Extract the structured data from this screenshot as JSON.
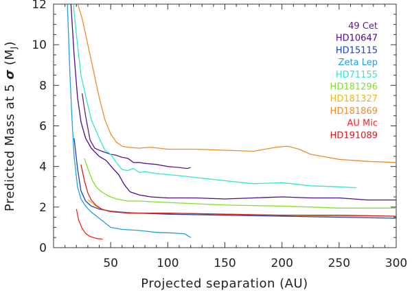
{
  "chart_data": {
    "type": "line",
    "title": "",
    "xlabel": "Projected separation (AU)",
    "ylabel_main": "Predicted Mass at 5 ",
    "ylabel_sigma": "σ",
    "ylabel_unit": " (M",
    "ylabel_sub": "J",
    "ylabel_close": ")",
    "xlim": [
      0,
      300
    ],
    "ylim": [
      0,
      12
    ],
    "xticks": [
      50,
      100,
      150,
      200,
      250,
      300
    ],
    "yticks": [
      0,
      2,
      4,
      6,
      8,
      10,
      12
    ],
    "legend_position": "top-right",
    "series": [
      {
        "name": "49 Cet",
        "color": "#5a1a8c",
        "x": [
          25,
          28,
          32,
          36,
          40,
          45,
          50,
          55,
          60,
          65,
          70,
          75,
          80,
          90,
          100,
          110,
          117,
          120
        ],
        "y": [
          7.6,
          6.5,
          5.3,
          4.9,
          4.8,
          4.7,
          4.6,
          4.55,
          4.45,
          4.4,
          4.2,
          4.2,
          4.15,
          4.1,
          4.0,
          3.95,
          3.9,
          3.95
        ]
      },
      {
        "name": "HD10647",
        "color": "#4b0a8a",
        "x": [
          15,
          18,
          21,
          24,
          28,
          33,
          40,
          46,
          52,
          57,
          62,
          67,
          75,
          85,
          100,
          125,
          150,
          175,
          200,
          225,
          250,
          275,
          300
        ],
        "y": [
          12.2,
          9.5,
          7.4,
          6.2,
          5.4,
          4.9,
          4.5,
          4.3,
          3.9,
          3.6,
          3.1,
          2.75,
          2.6,
          2.5,
          2.45,
          2.45,
          2.4,
          2.45,
          2.5,
          2.45,
          2.45,
          2.35,
          2.35
        ]
      },
      {
        "name": "HD15115",
        "color": "#1f3fbf",
        "x": [
          18,
          21,
          24,
          28,
          33,
          40,
          50,
          60,
          75,
          100,
          150,
          200,
          250,
          300
        ],
        "y": [
          5.4,
          3.9,
          2.8,
          2.3,
          2.05,
          1.9,
          1.8,
          1.75,
          1.7,
          1.65,
          1.6,
          1.55,
          1.5,
          1.45
        ]
      },
      {
        "name": "Zeta Lep",
        "color": "#1e9ee6",
        "x": [
          12,
          14,
          16,
          18,
          21,
          24,
          28,
          33,
          40,
          50,
          60,
          75,
          90,
          105,
          115,
          120
        ],
        "y": [
          12.2,
          9.0,
          6.5,
          4.5,
          3.0,
          2.4,
          2.05,
          1.75,
          1.45,
          1.0,
          0.9,
          0.85,
          0.75,
          0.72,
          0.68,
          0.5
        ]
      },
      {
        "name": "HD71155",
        "color": "#2ee8c8",
        "x": [
          17,
          20,
          24,
          28,
          33,
          40,
          45,
          50,
          55,
          60,
          65,
          70,
          75,
          80,
          90,
          100,
          110,
          125,
          150,
          175,
          200,
          225,
          250,
          265
        ],
        "y": [
          12.2,
          10.5,
          8.5,
          7.5,
          6.3,
          5.4,
          4.8,
          4.6,
          4.2,
          3.85,
          3.8,
          3.9,
          3.7,
          3.75,
          3.65,
          3.6,
          3.55,
          3.45,
          3.3,
          3.15,
          3.2,
          3.05,
          3.0,
          2.95
        ]
      },
      {
        "name": "HD181296",
        "color": "#7fe02a",
        "x": [
          27,
          30,
          34,
          38,
          42,
          48,
          55,
          65,
          75,
          90,
          110,
          150,
          200,
          250,
          300
        ],
        "y": [
          4.4,
          3.9,
          3.3,
          2.95,
          2.75,
          2.55,
          2.4,
          2.3,
          2.3,
          2.25,
          2.2,
          2.1,
          2.05,
          1.95,
          1.95
        ]
      },
      {
        "name": "HD181327",
        "color": "#e8b81e",
        "x": [
          30,
          34,
          38,
          42,
          48,
          55,
          65,
          80,
          100,
          150,
          200,
          250,
          300
        ],
        "y": [
          2.35,
          2.2,
          2.0,
          1.9,
          1.8,
          1.75,
          1.72,
          1.7,
          1.7,
          1.65,
          1.6,
          1.55,
          1.55
        ]
      },
      {
        "name": "HD181869",
        "color": "#f08a28",
        "x": [
          20,
          25,
          30,
          35,
          40,
          45,
          50,
          55,
          60,
          65,
          75,
          85,
          100,
          125,
          150,
          175,
          195,
          205,
          215,
          225,
          250,
          275,
          300
        ],
        "y": [
          12.2,
          11.3,
          10.0,
          8.7,
          7.4,
          6.3,
          5.6,
          5.2,
          5.0,
          4.95,
          4.9,
          4.95,
          4.85,
          4.85,
          4.8,
          4.75,
          4.95,
          5.0,
          4.85,
          4.6,
          4.35,
          4.25,
          4.2
        ]
      },
      {
        "name": "AU Mic",
        "color": "#ff2020",
        "x": [
          20,
          22,
          25,
          28,
          32,
          38,
          43
        ],
        "y": [
          1.9,
          1.35,
          0.95,
          0.7,
          0.55,
          0.45,
          0.42
        ]
      },
      {
        "name": "HD191089",
        "color": "#e01818",
        "x": [
          24,
          27,
          30,
          33,
          37,
          42,
          48,
          55,
          65,
          80,
          100,
          150,
          200,
          250,
          300
        ],
        "y": [
          4.1,
          3.3,
          2.7,
          2.35,
          2.1,
          1.9,
          1.8,
          1.75,
          1.7,
          1.7,
          1.7,
          1.65,
          1.6,
          1.6,
          1.55
        ]
      }
    ]
  }
}
